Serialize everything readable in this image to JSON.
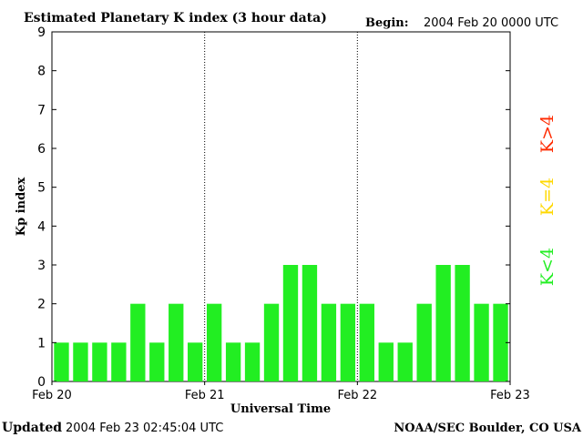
{
  "header": {
    "title": "Estimated Planetary K index (3 hour data)",
    "begin_label": "Begin:",
    "begin_value": "2004 Feb 20 0000 UTC"
  },
  "footer": {
    "updated_label": "Updated",
    "updated_value": "2004 Feb 23 02:45:04 UTC",
    "source": "NOAA/SEC Boulder, CO USA"
  },
  "legend": {
    "k_gt4": {
      "label": "K>4",
      "color": "#ff2a00"
    },
    "k_eq4": {
      "label": "K=4",
      "color": "#ffd800"
    },
    "k_lt4": {
      "label": "K<4",
      "color": "#22ee22"
    }
  },
  "chart_data": {
    "type": "bar",
    "title": "Estimated Planetary K index (3 hour data)",
    "xlabel": "Universal Time",
    "ylabel": "Kp index",
    "ylim": [
      0,
      9
    ],
    "yticks": [
      0,
      1,
      2,
      3,
      4,
      5,
      6,
      7,
      8,
      9
    ],
    "xtick_labels": [
      "Feb 20",
      "Feb 21",
      "Feb 22",
      "Feb 23"
    ],
    "day_separators": [
      "Feb 21",
      "Feb 22"
    ],
    "bar_interval_hours": 3,
    "bar_color": "#22ee22",
    "values": [
      1,
      1,
      1,
      1,
      2,
      1,
      2,
      1,
      2,
      1,
      1,
      2,
      3,
      3,
      2,
      2,
      2,
      1,
      1,
      2,
      3,
      3,
      2,
      2
    ]
  }
}
